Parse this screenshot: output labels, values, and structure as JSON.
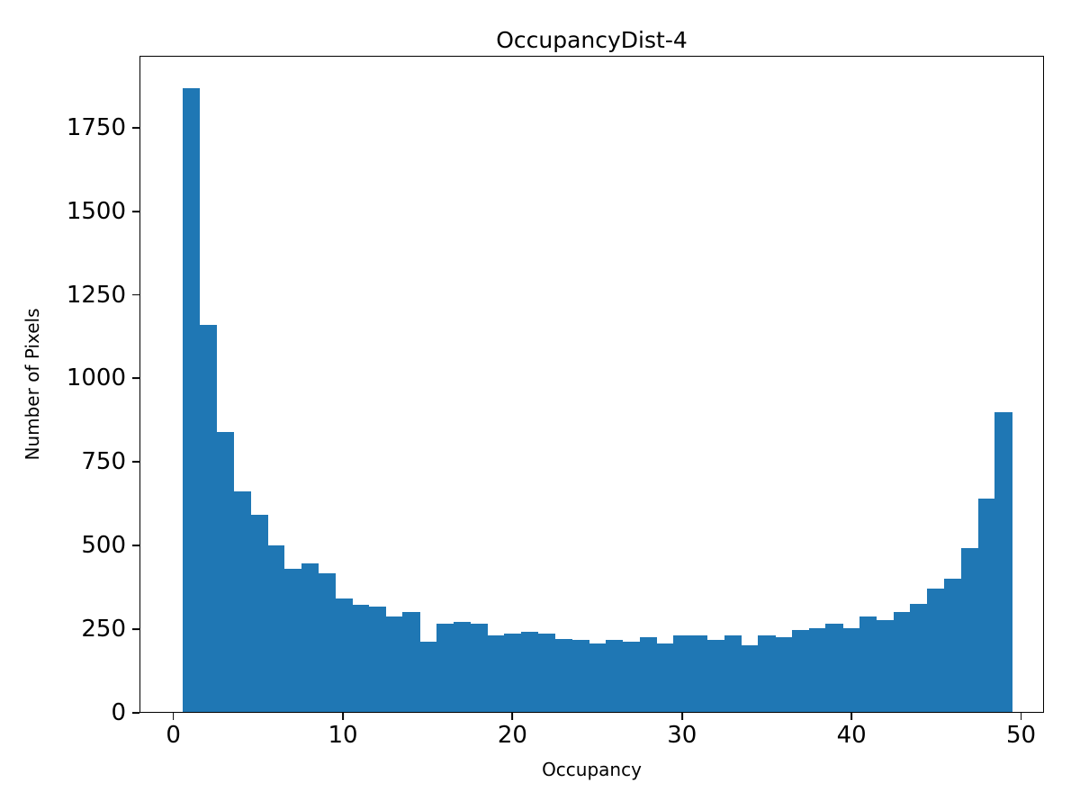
{
  "chart_data": {
    "type": "bar",
    "subtype": "histogram",
    "title": "OccupancyDist-4",
    "xlabel": "Occupancy",
    "ylabel": "Number of Pixels",
    "bar_color": "#1f77b4",
    "bin_start": 0.5,
    "bin_width": 1,
    "xlim": [
      -2.0,
      51.35
    ],
    "ylim": [
      0,
      1965
    ],
    "xticks": [
      0,
      10,
      20,
      30,
      40,
      50
    ],
    "yticks": [
      0,
      250,
      500,
      750,
      1000,
      1250,
      1500,
      1750
    ],
    "grid": false,
    "legend": "none",
    "values": [
      1870,
      1160,
      840,
      660,
      590,
      500,
      430,
      445,
      415,
      340,
      320,
      315,
      285,
      300,
      210,
      265,
      270,
      265,
      230,
      235,
      240,
      235,
      220,
      215,
      205,
      215,
      210,
      225,
      205,
      230,
      230,
      215,
      230,
      200,
      230,
      225,
      245,
      250,
      265,
      250,
      285,
      275,
      300,
      325,
      370,
      400,
      490,
      640,
      900
    ]
  }
}
